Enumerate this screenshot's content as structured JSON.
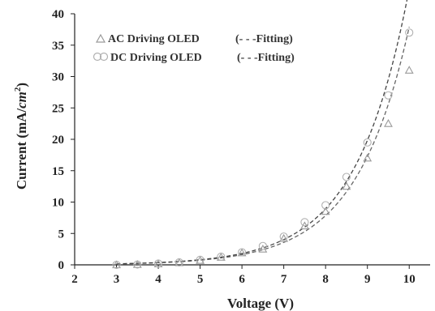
{
  "chart_data": {
    "type": "scatter",
    "xlabel": "Voltage (V)",
    "ylabel_main": "Current (mA/",
    "ylabel_unit": "cm",
    "ylabel_sup": "2",
    "ylabel_close": ")",
    "xlim": [
      2,
      10.5
    ],
    "ylim": [
      0,
      40
    ],
    "x_ticks": [
      "2",
      "3",
      "4",
      "5",
      "6",
      "7",
      "8",
      "9",
      "10"
    ],
    "y_ticks": [
      "0",
      "5",
      "10",
      "15",
      "20",
      "25",
      "30",
      "35",
      "40"
    ],
    "grid": false,
    "legend_position": "top-left",
    "series": [
      {
        "name": "AC Driving OLED",
        "fit_label": "(- - -Fitting)",
        "marker": "triangle",
        "color": "#9a9a9a",
        "x": [
          3,
          3.5,
          4,
          4.5,
          5,
          5.5,
          6,
          6.5,
          7,
          7.5,
          8,
          8.5,
          9,
          9.5,
          10
        ],
        "y": [
          0.0,
          0.05,
          0.15,
          0.35,
          0.7,
          1.2,
          1.9,
          2.5,
          4.2,
          6.2,
          8.5,
          12.5,
          17.0,
          22.5,
          31.0
        ],
        "fit_color": "#666666"
      },
      {
        "name": "DC Driving OLED",
        "fit_label": "(- - -Fitting)",
        "marker": "circle",
        "color": "#b0b0b0",
        "x": [
          3,
          3.5,
          4,
          4.5,
          5,
          5.5,
          6,
          6.5,
          7,
          7.5,
          8,
          8.5,
          9,
          9.5,
          10
        ],
        "y": [
          0.0,
          0.05,
          0.2,
          0.4,
          0.8,
          1.3,
          2.0,
          3.0,
          4.5,
          6.8,
          9.5,
          14.0,
          19.5,
          27.0,
          37.0
        ],
        "fit_color": "#444444"
      }
    ]
  }
}
